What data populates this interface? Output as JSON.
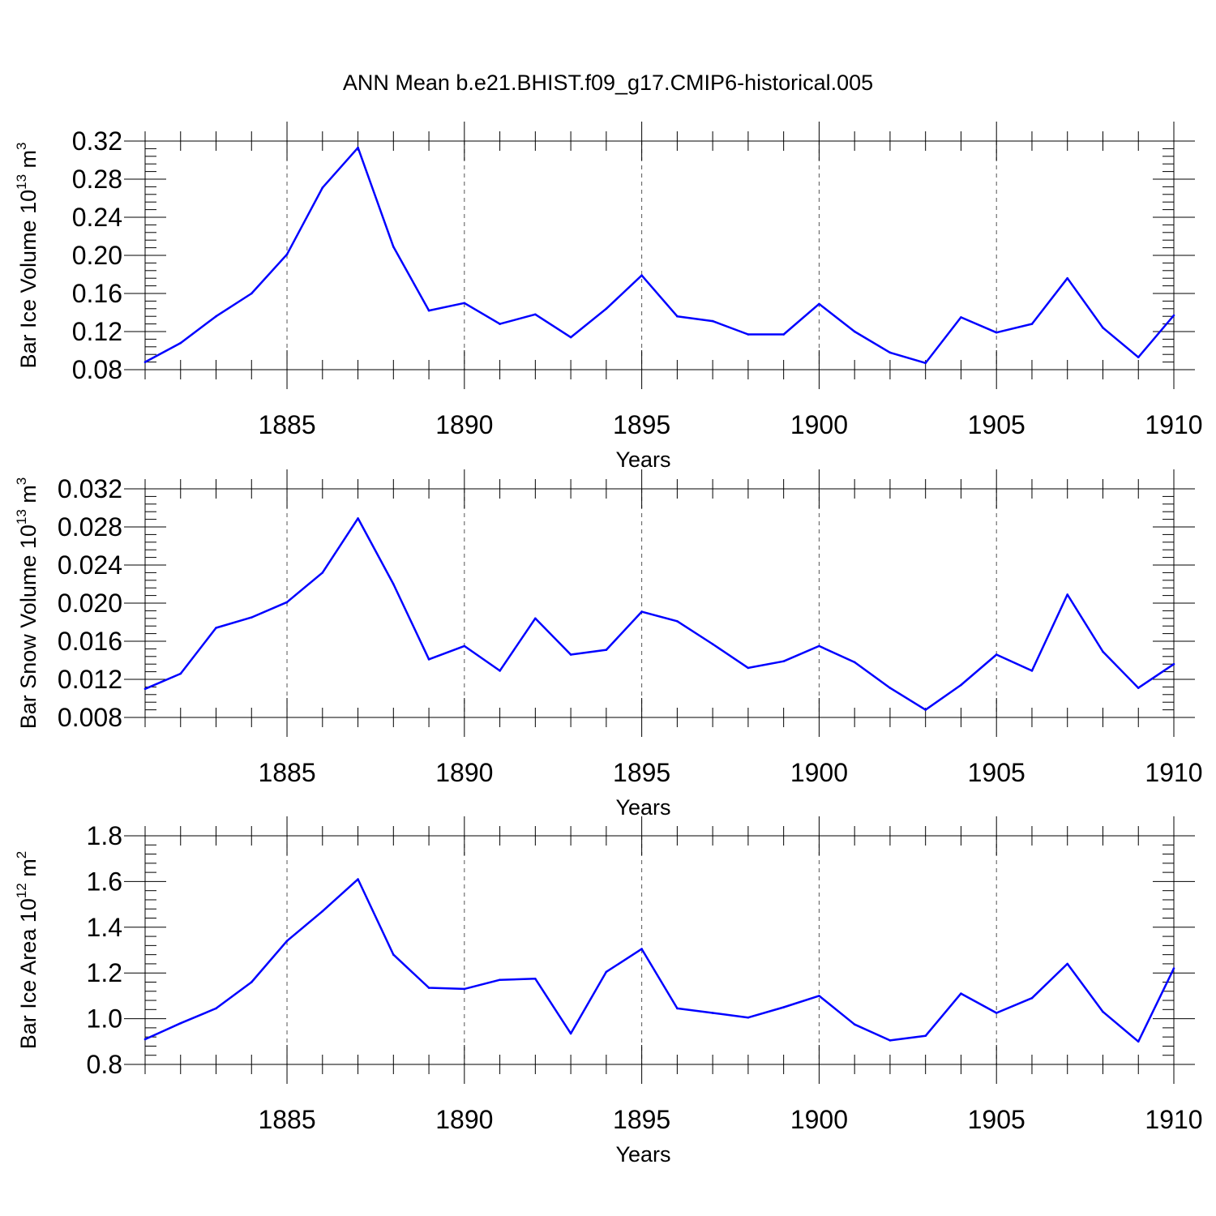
{
  "title": "ANN Mean b.e21.BHIST.f09_g17.CMIP6-historical.005",
  "colors": {
    "line": "#0000ff",
    "axis": "#000000",
    "grid": "#555555"
  },
  "chart_data": [
    {
      "type": "line",
      "ylabel": {
        "text": "Bar Ice Volume 10",
        "exponent": "13",
        "unit": " m",
        "unit_exponent": "3"
      },
      "xlabel": "Years",
      "xlim": [
        1881,
        1910
      ],
      "ylim": [
        0.08,
        0.32
      ],
      "xticks": [
        1885,
        1890,
        1895,
        1900,
        1905,
        1910
      ],
      "yticks": [
        0.08,
        0.12,
        0.16,
        0.2,
        0.24,
        0.28,
        0.32
      ],
      "ytick_labels": [
        "0.08",
        "0.12",
        "0.16",
        "0.20",
        "0.24",
        "0.28",
        "0.32"
      ],
      "series": [
        {
          "name": "Bar Ice Volume",
          "x": [
            1881,
            1882,
            1883,
            1884,
            1885,
            1886,
            1887,
            1888,
            1889,
            1890,
            1891,
            1892,
            1893,
            1894,
            1895,
            1896,
            1897,
            1898,
            1899,
            1900,
            1901,
            1902,
            1903,
            1904,
            1905,
            1906,
            1907,
            1908,
            1909,
            1910
          ],
          "values": [
            0.088,
            0.108,
            0.136,
            0.16,
            0.201,
            0.271,
            0.313,
            0.209,
            0.142,
            0.15,
            0.128,
            0.138,
            0.114,
            0.144,
            0.179,
            0.136,
            0.131,
            0.117,
            0.117,
            0.149,
            0.12,
            0.098,
            0.087,
            0.135,
            0.119,
            0.128,
            0.176,
            0.124,
            0.093,
            0.137
          ]
        }
      ]
    },
    {
      "type": "line",
      "ylabel": {
        "text": "Bar Snow Volume 10",
        "exponent": "13",
        "unit": " m",
        "unit_exponent": "3"
      },
      "xlabel": "Years",
      "xlim": [
        1881,
        1910
      ],
      "ylim": [
        0.008,
        0.032
      ],
      "xticks": [
        1885,
        1890,
        1895,
        1900,
        1905,
        1910
      ],
      "yticks": [
        0.008,
        0.012,
        0.016,
        0.02,
        0.024,
        0.028,
        0.032
      ],
      "ytick_labels": [
        "0.008",
        "0.012",
        "0.016",
        "0.020",
        "0.024",
        "0.028",
        "0.032"
      ],
      "series": [
        {
          "name": "Bar Snow Volume",
          "x": [
            1881,
            1882,
            1883,
            1884,
            1885,
            1886,
            1887,
            1888,
            1889,
            1890,
            1891,
            1892,
            1893,
            1894,
            1895,
            1896,
            1897,
            1898,
            1899,
            1900,
            1901,
            1902,
            1903,
            1904,
            1905,
            1906,
            1907,
            1908,
            1909,
            1910
          ],
          "values": [
            0.011,
            0.0126,
            0.0174,
            0.0185,
            0.0201,
            0.0232,
            0.0289,
            0.022,
            0.0141,
            0.0155,
            0.0129,
            0.0184,
            0.0146,
            0.0151,
            0.0191,
            0.0181,
            0.0157,
            0.0132,
            0.0139,
            0.0155,
            0.0138,
            0.0111,
            0.0088,
            0.0114,
            0.0146,
            0.0129,
            0.0209,
            0.0149,
            0.0111,
            0.0136
          ]
        }
      ]
    },
    {
      "type": "line",
      "ylabel": {
        "text": "Bar Ice Area 10",
        "exponent": "12",
        "unit": " m",
        "unit_exponent": "2"
      },
      "xlabel": "Years",
      "xlim": [
        1881,
        1910
      ],
      "ylim": [
        0.8,
        1.8
      ],
      "xticks": [
        1885,
        1890,
        1895,
        1900,
        1905,
        1910
      ],
      "yticks": [
        0.8,
        1.0,
        1.2,
        1.4,
        1.6,
        1.8
      ],
      "ytick_labels": [
        "0.8",
        "1.0",
        "1.2",
        "1.4",
        "1.6",
        "1.8"
      ],
      "series": [
        {
          "name": "Bar Ice Area",
          "x": [
            1881,
            1882,
            1883,
            1884,
            1885,
            1886,
            1887,
            1888,
            1889,
            1890,
            1891,
            1892,
            1893,
            1894,
            1895,
            1896,
            1897,
            1898,
            1899,
            1900,
            1901,
            1902,
            1903,
            1904,
            1905,
            1906,
            1907,
            1908,
            1909,
            1910
          ],
          "values": [
            0.91,
            0.98,
            1.045,
            1.16,
            1.34,
            1.47,
            1.61,
            1.28,
            1.135,
            1.13,
            1.17,
            1.175,
            0.935,
            1.205,
            1.305,
            1.045,
            1.025,
            1.005,
            1.05,
            1.1,
            0.975,
            0.905,
            0.925,
            1.11,
            1.025,
            1.09,
            1.24,
            1.03,
            0.9,
            1.22
          ]
        }
      ]
    }
  ]
}
